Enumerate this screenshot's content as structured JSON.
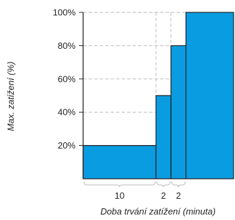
{
  "chart_data": {
    "type": "bar",
    "xlabel": "Doba trvání zatížení (minuta)",
    "ylabel": "Max. zatížení (%)",
    "y_ticks": [
      "20%",
      "40%",
      "60%",
      "80%",
      "100%"
    ],
    "ylim": [
      0,
      100
    ],
    "grid": true,
    "segments": [
      {
        "duration": 10,
        "duration_label": "10",
        "value": 20
      },
      {
        "duration": 2,
        "duration_label": "2",
        "value": 50
      },
      {
        "duration": 2,
        "duration_label": "2",
        "value": 80
      },
      {
        "duration": 5,
        "duration_label": "",
        "value": 100
      }
    ],
    "colors": {
      "bar": "#0a9ce0",
      "outline": "#231f20",
      "grid": "#b5b5b5",
      "brace": "#b8b8b8"
    }
  }
}
